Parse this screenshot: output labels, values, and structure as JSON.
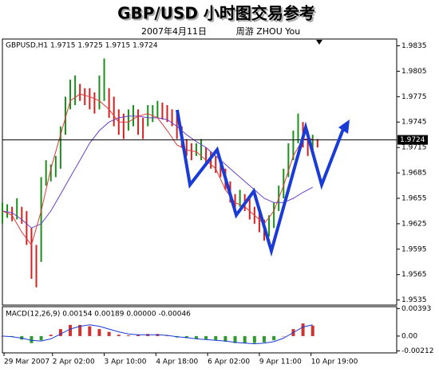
{
  "header": {
    "title": "GBP/USD 小时图交易参考",
    "date": "2007年4月11日",
    "author": "周游 ZHOU You"
  },
  "chart_data": [
    {
      "type": "range",
      "label": "GBPUSD,H1 1.9715 1.9725 1.9715 1.9724",
      "x": [
        0,
        3,
        6,
        9,
        12,
        15,
        18,
        21,
        24,
        27,
        30,
        33,
        36,
        39,
        42,
        45,
        48,
        51,
        54,
        57,
        60,
        63,
        66,
        69,
        72,
        75,
        78,
        81,
        84,
        87,
        90,
        93,
        96,
        99,
        102,
        105,
        108,
        111,
        114,
        117,
        120,
        123,
        126,
        129,
        132,
        135,
        138,
        141,
        144,
        147,
        150,
        153,
        156,
        159,
        162,
        165,
        168,
        171,
        174,
        177,
        180,
        183,
        186,
        189,
        192,
        195
      ],
      "low": [
        1.9625,
        1.9632,
        1.9628,
        1.963,
        1.9625,
        1.96,
        1.956,
        1.955,
        1.958,
        1.967,
        1.9675,
        1.968,
        1.969,
        1.973,
        1.976,
        1.9765,
        1.977,
        1.9765,
        1.976,
        1.9755,
        1.976,
        1.977,
        1.975,
        1.974,
        1.973,
        1.9725,
        1.9735,
        1.974,
        1.973,
        1.9725,
        1.974,
        1.9745,
        1.975,
        1.9748,
        1.9745,
        1.974,
        1.9725,
        1.9715,
        1.9705,
        1.97,
        1.9705,
        1.97,
        1.9695,
        1.969,
        1.9685,
        1.968,
        1.9665,
        1.965,
        1.964,
        1.9645,
        1.964,
        1.963,
        1.9625,
        1.9615,
        1.9605,
        1.961,
        1.962,
        1.964,
        1.9655,
        1.968,
        1.97,
        1.972,
        1.9715,
        1.9705,
        1.9712,
        1.9715
      ],
      "high": [
        1.965,
        1.9648,
        1.9645,
        1.9655,
        1.9645,
        1.964,
        1.962,
        1.96,
        1.968,
        1.97,
        1.9695,
        1.9705,
        1.974,
        1.9775,
        1.9795,
        1.98,
        1.979,
        1.9785,
        1.9785,
        1.978,
        1.98,
        1.982,
        1.9785,
        1.9775,
        1.976,
        1.9755,
        1.976,
        1.9765,
        1.976,
        1.975,
        1.9765,
        1.9765,
        1.977,
        1.9768,
        1.9765,
        1.976,
        1.9755,
        1.974,
        1.9725,
        1.972,
        1.972,
        1.9725,
        1.9715,
        1.971,
        1.9705,
        1.97,
        1.969,
        1.9675,
        1.966,
        1.9665,
        1.966,
        1.9655,
        1.9645,
        1.964,
        1.963,
        1.9635,
        1.965,
        1.967,
        1.969,
        1.972,
        1.9735,
        1.9755,
        1.9745,
        1.9735,
        1.973,
        1.9725
      ],
      "up_color": "#1a8f1a",
      "down_color": "#d42020",
      "lines": [
        {
          "color": "#6a3fc8",
          "x": [
            0,
            6,
            12,
            18,
            24,
            30,
            36,
            42,
            48,
            54,
            60,
            66,
            72,
            78,
            84,
            90,
            96,
            102,
            108,
            114,
            120,
            126,
            132,
            138,
            144,
            150,
            156,
            162,
            168,
            174,
            180,
            186,
            192
          ],
          "values": [
            1.964,
            1.9638,
            1.963,
            1.962,
            1.9625,
            1.964,
            1.966,
            1.968,
            1.97,
            1.972,
            1.9735,
            1.9745,
            1.975,
            1.9752,
            1.9752,
            1.975,
            1.975,
            1.9748,
            1.974,
            1.973,
            1.9722,
            1.9715,
            1.9705,
            1.9695,
            1.9685,
            1.9675,
            1.9665,
            1.9655,
            1.965,
            1.965,
            1.9655,
            1.9662,
            1.9668
          ]
        },
        {
          "color": "#e03a3a",
          "x": [
            0,
            6,
            12,
            18,
            24,
            30,
            36,
            42,
            48,
            54,
            60,
            66,
            72,
            78,
            84,
            90,
            96,
            102,
            108,
            114,
            120,
            126,
            132,
            138,
            144,
            150,
            156,
            162,
            168,
            174,
            180,
            186,
            192
          ],
          "values": [
            1.964,
            1.9635,
            1.9615,
            1.96,
            1.964,
            1.969,
            1.973,
            1.977,
            1.9778,
            1.9775,
            1.977,
            1.976,
            1.9745,
            1.9745,
            1.9752,
            1.9755,
            1.975,
            1.9735,
            1.9718,
            1.9712,
            1.971,
            1.97,
            1.969,
            1.9665,
            1.965,
            1.9645,
            1.9635,
            1.9625,
            1.964,
            1.967,
            1.9705,
            1.9725,
            1.9725
          ]
        }
      ],
      "current_price": 1.9724,
      "xlim": [
        0,
        244
      ],
      "xticks": [
        {
          "value": 1,
          "label": "29 Mar 2007"
        },
        {
          "value": 31,
          "label": "2 Apr 02:00"
        },
        {
          "value": 63,
          "label": "3 Apr 10:00"
        },
        {
          "value": 95,
          "label": "4 Apr 18:00"
        },
        {
          "value": 127,
          "label": "6 Apr 02:00"
        },
        {
          "value": 159,
          "label": "9 Apr 11:00"
        },
        {
          "value": 191,
          "label": "10 Apr 19:00"
        }
      ],
      "ylim": [
        1.9529,
        1.9843
      ],
      "yticks": [
        1.9835,
        1.9805,
        1.9775,
        1.9745,
        1.9715,
        1.9685,
        1.9655,
        1.9625,
        1.9595,
        1.9565,
        1.9535
      ]
    },
    {
      "type": "macd",
      "label": "MACD(12,26,9) 0.00154 0.00189 0.00000 -0.00046",
      "x": [
        0,
        6,
        12,
        18,
        24,
        30,
        36,
        42,
        48,
        54,
        60,
        66,
        72,
        78,
        84,
        90,
        96,
        102,
        108,
        114,
        120,
        126,
        132,
        138,
        144,
        150,
        156,
        162,
        168,
        174,
        180,
        186,
        192
      ],
      "histogram": [
        0,
        -0.0001,
        -0.0005,
        -0.001,
        -0.0006,
        0.0002,
        0.001,
        0.0016,
        0.0016,
        0.0014,
        0.001,
        0.0006,
        0.0002,
        0.0001,
        0.0002,
        0.0003,
        0.0003,
        0.0001,
        -0.0002,
        -0.0003,
        -0.0004,
        -0.0005,
        -0.0006,
        -0.0008,
        -0.001,
        -0.001,
        -0.001,
        -0.0009,
        -0.0006,
        0,
        0.001,
        0.0018,
        0.0015
      ],
      "pos_color": "#cc3333",
      "neg_color": "#2f9a2f",
      "signal": {
        "color": "#1a3bd6",
        "values": [
          0,
          -0.0001,
          -0.0003,
          -0.0006,
          -0.0007,
          -0.0004,
          0.0003,
          0.001,
          0.0014,
          0.0016,
          0.0014,
          0.001,
          0.0006,
          0.0003,
          0.0002,
          0.0002,
          0.0002,
          0.0001,
          -0.0001,
          -0.0002,
          -0.0004,
          -0.0005,
          -0.0006,
          -0.0007,
          -0.0009,
          -0.001,
          -0.0011,
          -0.001,
          -0.0008,
          -0.0003,
          0.0005,
          0.0013,
          0.0016
        ]
      },
      "ylim": [
        -0.0024,
        0.0042
      ],
      "yticks": [
        0.00393,
        {
          "value": 0,
          "label": "0.00"
        },
        -0.00212
      ]
    }
  ]
}
